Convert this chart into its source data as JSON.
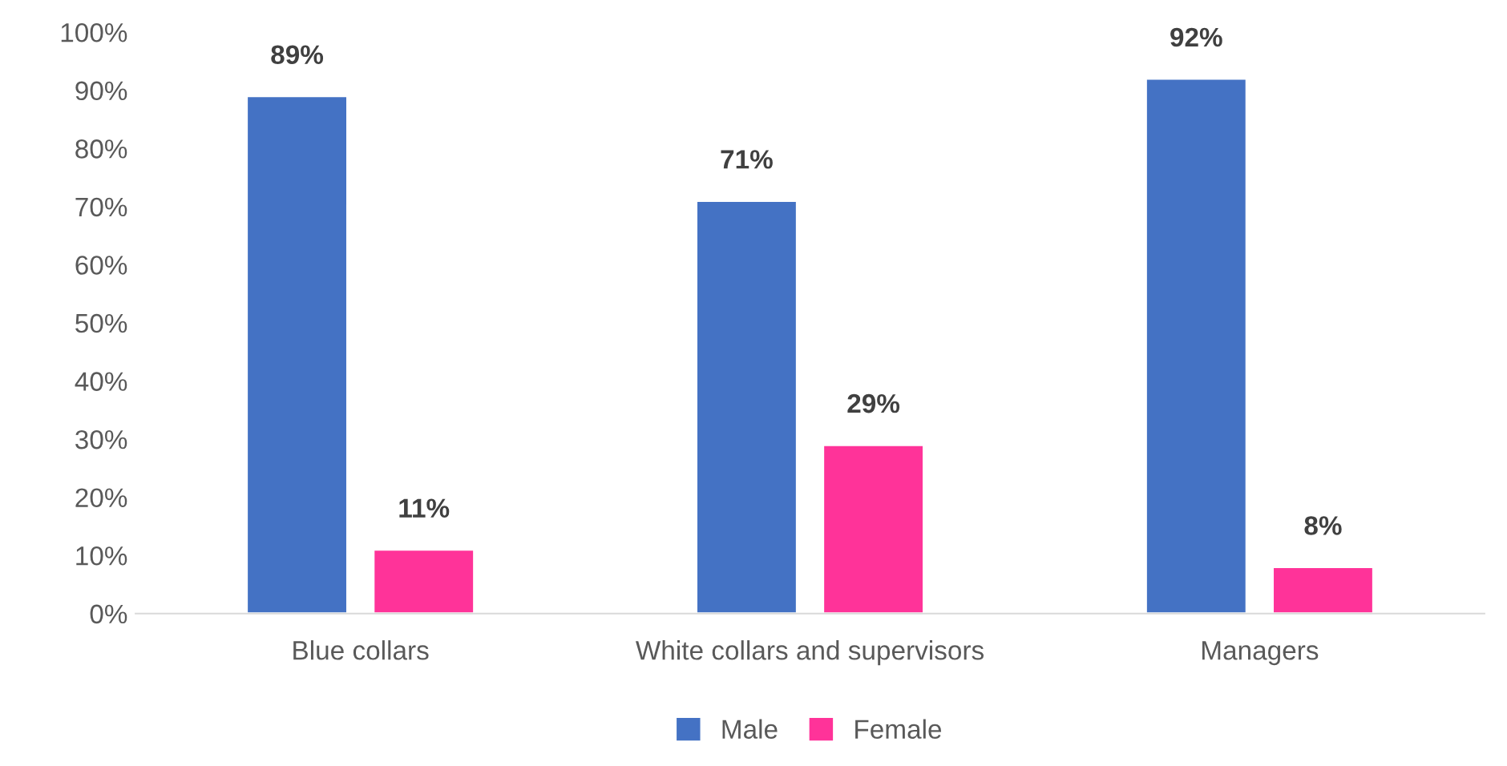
{
  "chart_data": {
    "type": "bar",
    "categories": [
      "Blue collars",
      "White collars and supervisors",
      "Managers"
    ],
    "series": [
      {
        "name": "Male",
        "color": "#4472c4",
        "values": [
          89,
          71,
          92
        ],
        "value_labels": [
          "89%",
          "71%",
          "92%"
        ]
      },
      {
        "name": "Female",
        "color": "#ff3399",
        "values": [
          11,
          29,
          8
        ],
        "value_labels": [
          "11%",
          "29%",
          "8%"
        ]
      }
    ],
    "ylim": [
      0,
      100
    ],
    "yticks": [
      {
        "value": 0,
        "label": "0%"
      },
      {
        "value": 10,
        "label": "10%"
      },
      {
        "value": 20,
        "label": "20%"
      },
      {
        "value": 30,
        "label": "30%"
      },
      {
        "value": 40,
        "label": "40%"
      },
      {
        "value": 50,
        "label": "50%"
      },
      {
        "value": 60,
        "label": "60%"
      },
      {
        "value": 70,
        "label": "70%"
      },
      {
        "value": 80,
        "label": "80%"
      },
      {
        "value": 90,
        "label": "90%"
      },
      {
        "value": 100,
        "label": "100%"
      }
    ],
    "legend": "bottom",
    "grid": false
  }
}
